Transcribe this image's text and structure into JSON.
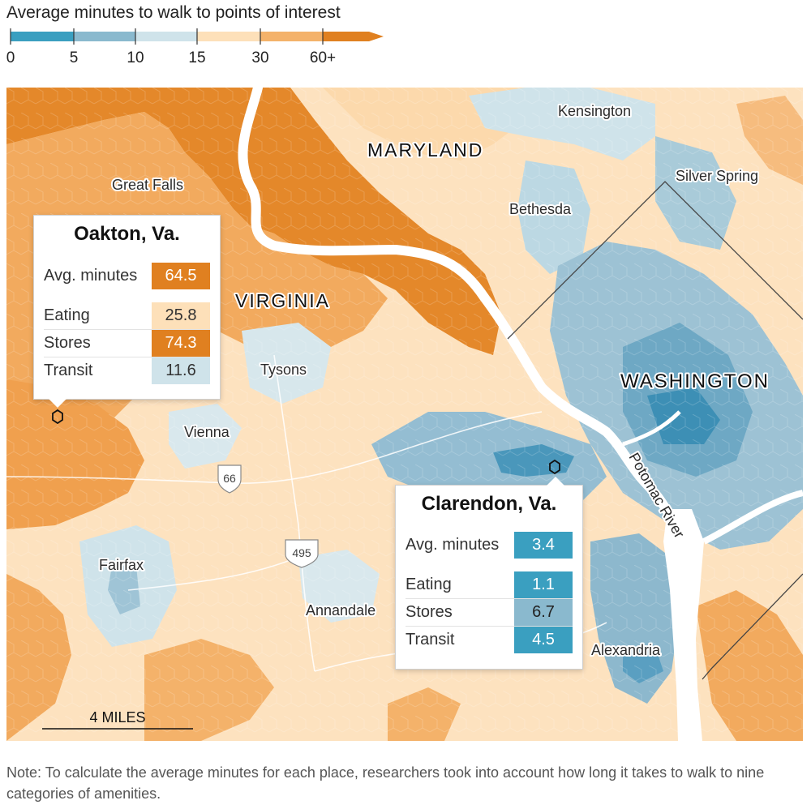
{
  "legend": {
    "title": "Average minutes to walk to points of interest",
    "ticks": [
      "0",
      "5",
      "10",
      "15",
      "30",
      "60+"
    ],
    "colors": [
      "#3a9fc0",
      "#8ab9ce",
      "#cfe3ea",
      "#fde0b9",
      "#f4b26a",
      "#e08020"
    ]
  },
  "map": {
    "places": {
      "kensington": "Kensington",
      "maryland": "MARYLAND",
      "silver_spring": "Silver Spring",
      "great_falls": "Great Falls",
      "bethesda": "Bethesda",
      "virginia": "VIRGINIA",
      "tysons": "Tysons",
      "washington": "WASHINGTON",
      "vienna": "Vienna",
      "potomac_river": "Potomac River",
      "fairfax": "Fairfax",
      "annandale": "Annandale",
      "alexandria": "Alexandria"
    },
    "highways": {
      "i66": "66",
      "i495": "495"
    },
    "scale_label": "4 MILES"
  },
  "callouts": {
    "oakton": {
      "title": "Oakton, Va.",
      "avg_label": "Avg. minutes",
      "avg_value": "64.5",
      "rows": [
        {
          "label": "Eating",
          "value": "25.8"
        },
        {
          "label": "Stores",
          "value": "74.3"
        },
        {
          "label": "Transit",
          "value": "11.6"
        }
      ]
    },
    "clarendon": {
      "title": "Clarendon, Va.",
      "avg_label": "Avg. minutes",
      "avg_value": "3.4",
      "rows": [
        {
          "label": "Eating",
          "value": "1.1"
        },
        {
          "label": "Stores",
          "value": "6.7"
        },
        {
          "label": "Transit",
          "value": "4.5"
        }
      ]
    }
  },
  "note": "Note: To calculate the average minutes for each place, researchers took into account how long it takes to walk to nine categories of amenities."
}
